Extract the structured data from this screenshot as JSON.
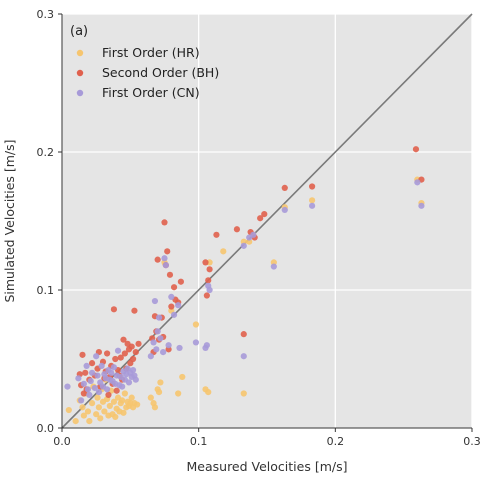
{
  "chart_data": {
    "type": "scatter",
    "panel_label": "(a)",
    "xlabel": "Measured Velocities [m/s]",
    "ylabel": "Simulated Velocities [m/s]",
    "xlim": [
      0,
      0.3
    ],
    "ylim": [
      0,
      0.3
    ],
    "x_ticks": [
      "0.0",
      "0.1",
      "0.2",
      "0.3"
    ],
    "y_ticks": [
      "0.0",
      "0.1",
      "0.2",
      "0.3"
    ],
    "grid": true,
    "legend_position": "top-left",
    "identity_line": true,
    "series": [
      {
        "name": "First Order (HR)",
        "color": "#f6c56f",
        "points": [
          [
            0.005,
            0.013
          ],
          [
            0.01,
            0.005
          ],
          [
            0.013,
            0.02
          ],
          [
            0.015,
            0.015
          ],
          [
            0.016,
            0.009
          ],
          [
            0.018,
            0.025
          ],
          [
            0.019,
            0.012
          ],
          [
            0.02,
            0.005
          ],
          [
            0.022,
            0.018
          ],
          [
            0.023,
            0.03
          ],
          [
            0.025,
            0.01
          ],
          [
            0.026,
            0.022
          ],
          [
            0.027,
            0.015
          ],
          [
            0.028,
            0.007
          ],
          [
            0.029,
            0.028
          ],
          [
            0.03,
            0.019
          ],
          [
            0.031,
            0.012
          ],
          [
            0.032,
            0.035
          ],
          [
            0.033,
            0.021
          ],
          [
            0.034,
            0.009
          ],
          [
            0.035,
            0.016
          ],
          [
            0.036,
            0.027
          ],
          [
            0.037,
            0.01
          ],
          [
            0.038,
            0.019
          ],
          [
            0.039,
            0.008
          ],
          [
            0.04,
            0.014
          ],
          [
            0.041,
            0.022
          ],
          [
            0.042,
            0.012
          ],
          [
            0.043,
            0.018
          ],
          [
            0.044,
            0.02
          ],
          [
            0.045,
            0.011
          ],
          [
            0.046,
            0.025
          ],
          [
            0.047,
            0.015
          ],
          [
            0.048,
            0.019
          ],
          [
            0.049,
            0.016
          ],
          [
            0.05,
            0.018
          ],
          [
            0.051,
            0.022
          ],
          [
            0.052,
            0.015
          ],
          [
            0.053,
            0.018
          ],
          [
            0.055,
            0.017
          ],
          [
            0.065,
            0.022
          ],
          [
            0.067,
            0.018
          ],
          [
            0.068,
            0.015
          ],
          [
            0.07,
            0.028
          ],
          [
            0.071,
            0.026
          ],
          [
            0.072,
            0.033
          ],
          [
            0.075,
            0.12
          ],
          [
            0.08,
            0.085
          ],
          [
            0.085,
            0.025
          ],
          [
            0.088,
            0.037
          ],
          [
            0.098,
            0.075
          ],
          [
            0.105,
            0.028
          ],
          [
            0.107,
            0.026
          ],
          [
            0.108,
            0.12
          ],
          [
            0.118,
            0.128
          ],
          [
            0.133,
            0.025
          ],
          [
            0.133,
            0.135
          ],
          [
            0.137,
            0.135
          ],
          [
            0.14,
            0.14
          ],
          [
            0.155,
            0.12
          ],
          [
            0.163,
            0.16
          ],
          [
            0.183,
            0.165
          ],
          [
            0.26,
            0.18
          ],
          [
            0.263,
            0.163
          ]
        ]
      },
      {
        "name": "Second Order (BH)",
        "color": "#e0604d",
        "points": [
          [
            0.013,
            0.039
          ],
          [
            0.014,
            0.031
          ],
          [
            0.015,
            0.053
          ],
          [
            0.016,
            0.025
          ],
          [
            0.017,
            0.04
          ],
          [
            0.018,
            0.028
          ],
          [
            0.02,
            0.035
          ],
          [
            0.022,
            0.047
          ],
          [
            0.024,
            0.038
          ],
          [
            0.026,
            0.043
          ],
          [
            0.027,
            0.055
          ],
          [
            0.028,
            0.03
          ],
          [
            0.03,
            0.048
          ],
          [
            0.031,
            0.036
          ],
          [
            0.032,
            0.041
          ],
          [
            0.033,
            0.054
          ],
          [
            0.034,
            0.024
          ],
          [
            0.035,
            0.037
          ],
          [
            0.036,
            0.045
          ],
          [
            0.037,
            0.032
          ],
          [
            0.038,
            0.086
          ],
          [
            0.039,
            0.05
          ],
          [
            0.04,
            0.027
          ],
          [
            0.041,
            0.042
          ],
          [
            0.042,
            0.038
          ],
          [
            0.043,
            0.051
          ],
          [
            0.044,
            0.035
          ],
          [
            0.045,
            0.064
          ],
          [
            0.046,
            0.054
          ],
          [
            0.047,
            0.043
          ],
          [
            0.048,
            0.061
          ],
          [
            0.049,
            0.057
          ],
          [
            0.05,
            0.047
          ],
          [
            0.051,
            0.059
          ],
          [
            0.052,
            0.05
          ],
          [
            0.053,
            0.085
          ],
          [
            0.054,
            0.055
          ],
          [
            0.056,
            0.061
          ],
          [
            0.066,
            0.065
          ],
          [
            0.067,
            0.055
          ],
          [
            0.068,
            0.081
          ],
          [
            0.069,
            0.07
          ],
          [
            0.07,
            0.122
          ],
          [
            0.071,
            0.064
          ],
          [
            0.073,
            0.08
          ],
          [
            0.074,
            0.066
          ],
          [
            0.075,
            0.149
          ],
          [
            0.076,
            0.118
          ],
          [
            0.077,
            0.128
          ],
          [
            0.078,
            0.057
          ],
          [
            0.079,
            0.111
          ],
          [
            0.08,
            0.088
          ],
          [
            0.082,
            0.102
          ],
          [
            0.083,
            0.093
          ],
          [
            0.085,
            0.091
          ],
          [
            0.087,
            0.106
          ],
          [
            0.105,
            0.12
          ],
          [
            0.106,
            0.096
          ],
          [
            0.107,
            0.107
          ],
          [
            0.108,
            0.115
          ],
          [
            0.113,
            0.14
          ],
          [
            0.128,
            0.144
          ],
          [
            0.133,
            0.068
          ],
          [
            0.138,
            0.142
          ],
          [
            0.141,
            0.138
          ],
          [
            0.145,
            0.152
          ],
          [
            0.148,
            0.155
          ],
          [
            0.163,
            0.174
          ],
          [
            0.183,
            0.175
          ],
          [
            0.259,
            0.202
          ],
          [
            0.263,
            0.18
          ]
        ]
      },
      {
        "name": "First Order (CN)",
        "color": "#a79ad8",
        "points": [
          [
            0.004,
            0.03
          ],
          [
            0.012,
            0.036
          ],
          [
            0.014,
            0.02
          ],
          [
            0.016,
            0.032
          ],
          [
            0.018,
            0.045
          ],
          [
            0.019,
            0.028
          ],
          [
            0.02,
            0.024
          ],
          [
            0.021,
            0.034
          ],
          [
            0.022,
            0.04
          ],
          [
            0.024,
            0.029
          ],
          [
            0.025,
            0.052
          ],
          [
            0.026,
            0.038
          ],
          [
            0.027,
            0.026
          ],
          [
            0.028,
            0.033
          ],
          [
            0.029,
            0.045
          ],
          [
            0.03,
            0.03
          ],
          [
            0.031,
            0.039
          ],
          [
            0.032,
            0.036
          ],
          [
            0.033,
            0.028
          ],
          [
            0.034,
            0.042
          ],
          [
            0.035,
            0.035
          ],
          [
            0.036,
            0.04
          ],
          [
            0.037,
            0.034
          ],
          [
            0.038,
            0.044
          ],
          [
            0.039,
            0.032
          ],
          [
            0.04,
            0.038
          ],
          [
            0.041,
            0.056
          ],
          [
            0.042,
            0.031
          ],
          [
            0.043,
            0.037
          ],
          [
            0.044,
            0.03
          ],
          [
            0.045,
            0.041
          ],
          [
            0.046,
            0.035
          ],
          [
            0.047,
            0.039
          ],
          [
            0.048,
            0.043
          ],
          [
            0.049,
            0.033
          ],
          [
            0.05,
            0.04
          ],
          [
            0.051,
            0.037
          ],
          [
            0.052,
            0.042
          ],
          [
            0.053,
            0.038
          ],
          [
            0.054,
            0.035
          ],
          [
            0.065,
            0.052
          ],
          [
            0.067,
            0.062
          ],
          [
            0.068,
            0.092
          ],
          [
            0.069,
            0.057
          ],
          [
            0.07,
            0.07
          ],
          [
            0.071,
            0.08
          ],
          [
            0.072,
            0.065
          ],
          [
            0.074,
            0.055
          ],
          [
            0.075,
            0.123
          ],
          [
            0.076,
            0.118
          ],
          [
            0.078,
            0.06
          ],
          [
            0.08,
            0.095
          ],
          [
            0.082,
            0.082
          ],
          [
            0.085,
            0.089
          ],
          [
            0.086,
            0.058
          ],
          [
            0.098,
            0.062
          ],
          [
            0.105,
            0.058
          ],
          [
            0.106,
            0.06
          ],
          [
            0.107,
            0.103
          ],
          [
            0.108,
            0.1
          ],
          [
            0.133,
            0.052
          ],
          [
            0.133,
            0.132
          ],
          [
            0.137,
            0.138
          ],
          [
            0.14,
            0.14
          ],
          [
            0.155,
            0.117
          ],
          [
            0.163,
            0.158
          ],
          [
            0.183,
            0.161
          ],
          [
            0.26,
            0.178
          ],
          [
            0.263,
            0.161
          ]
        ]
      }
    ]
  }
}
